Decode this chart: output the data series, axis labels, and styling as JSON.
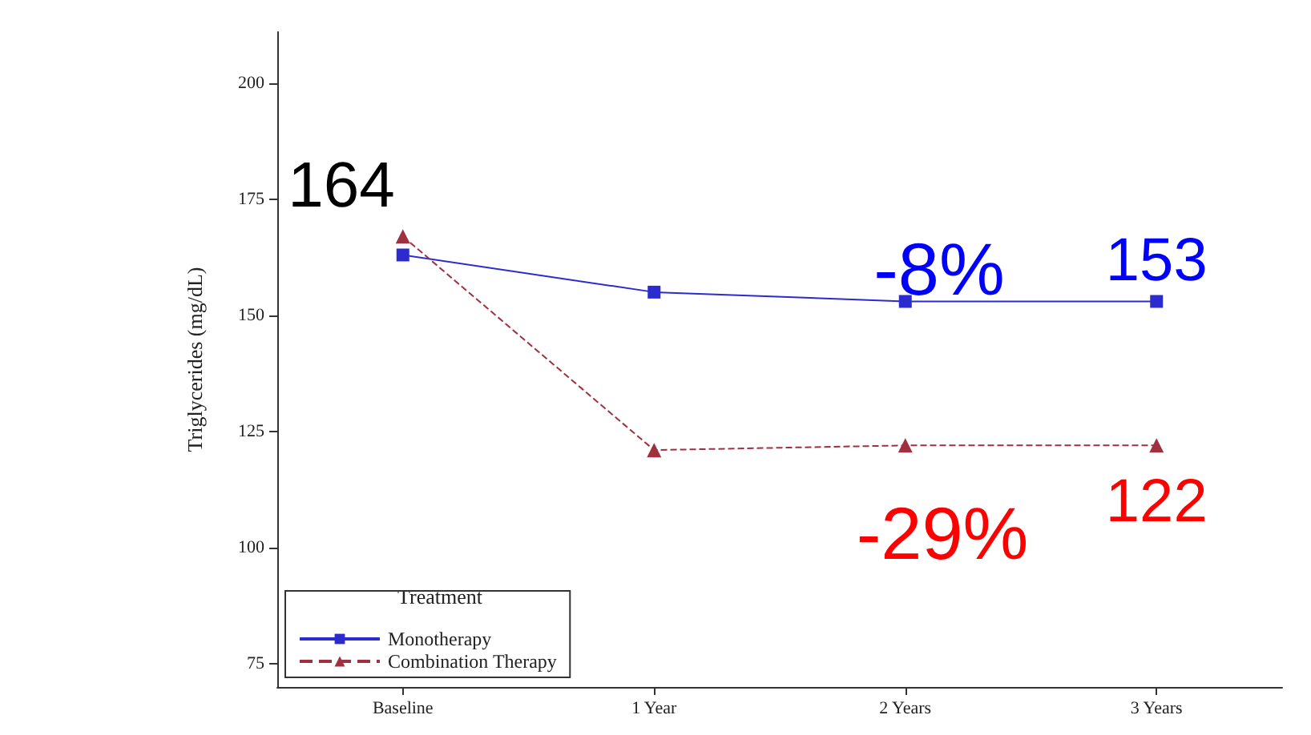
{
  "chart_data": {
    "type": "line",
    "ylabel": "Triglycerides (mg/dL)",
    "legend_title": "Treatment",
    "categories": [
      "Baseline",
      "1 Year",
      "2 Years",
      "3 Years"
    ],
    "series": [
      {
        "name": "Monotherapy",
        "color": "#2b2bd0",
        "values": [
          163,
          155,
          153,
          153
        ],
        "marker": "square",
        "line_style": "solid",
        "value_labels": [
          null,
          null,
          null,
          "153"
        ]
      },
      {
        "name": "Combination Therapy",
        "color": "#a03040",
        "values": [
          167,
          121,
          122,
          122
        ],
        "marker": "triangle",
        "line_style": "dashed",
        "value_labels": [
          null,
          null,
          null,
          "122"
        ]
      }
    ],
    "ylim": [
      70,
      211
    ],
    "yticks": [
      75,
      100,
      125,
      150,
      175,
      200
    ],
    "grid": false,
    "legend": "bottom left",
    "annotations": [
      "164",
      "-8%",
      "-29%"
    ]
  }
}
